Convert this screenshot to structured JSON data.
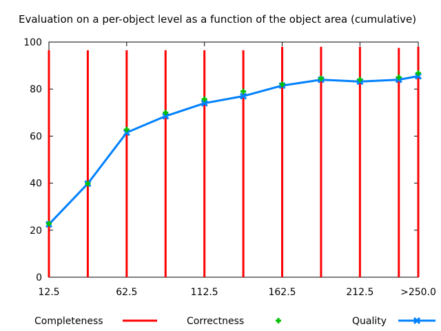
{
  "chart_data": {
    "type": "line",
    "title": "Evaluation on a per-object level as a function of the object area (cumulative)",
    "xlabel": "",
    "ylabel": "",
    "x": [
      12.5,
      37.5,
      62.5,
      87.5,
      112.5,
      137.5,
      162.5,
      187.5,
      212.5,
      237.5,
      250
    ],
    "x_tick_values": [
      12.5,
      62.5,
      112.5,
      162.5,
      212.5,
      250
    ],
    "x_tick_labels": [
      "12.5",
      "62.5",
      "112.5",
      "162.5",
      "212.5",
      ">250.0"
    ],
    "xlim": [
      12.5,
      250
    ],
    "ylim": [
      0,
      100
    ],
    "y_ticks": [
      0,
      20,
      40,
      60,
      80,
      100
    ],
    "grid": false,
    "legend_position": "bottom",
    "series": [
      {
        "name": "Completeness",
        "style": "impulse",
        "color": "#ff0000",
        "values": [
          96.5,
          96.5,
          96.5,
          96.5,
          96.5,
          96.5,
          98,
          98,
          98,
          97.5,
          98
        ]
      },
      {
        "name": "Correctness",
        "style": "points",
        "marker": "plus",
        "color": "#00c000",
        "values": [
          22.8,
          39.8,
          62.8,
          70,
          75.7,
          79,
          82,
          84.5,
          84,
          85,
          86.8
        ]
      },
      {
        "name": "Quality",
        "style": "linespoints",
        "marker": "x",
        "color": "#0080ff",
        "values": [
          22.5,
          39.8,
          61.5,
          68.5,
          74,
          77,
          81.5,
          84,
          83.2,
          84,
          85.5
        ]
      }
    ]
  }
}
